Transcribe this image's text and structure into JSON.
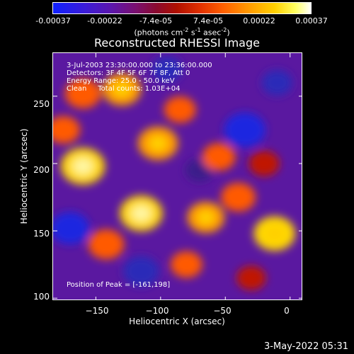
{
  "colorbar": {
    "tick_labels": [
      "-0.00037",
      "-0.00022",
      "-7.4e-05",
      "7.4e-05",
      "0.00022",
      "0.00037"
    ],
    "units_prefix": "(photons cm",
    "units_exp1": "-2",
    "units_mid1": " s",
    "units_exp2": "-1",
    "units_mid2": " asec",
    "units_exp3": "-2",
    "units_suffix": ")"
  },
  "chart_data": {
    "type": "heatmap",
    "title": "Reconstructed RHESSI Image",
    "xlabel": "Heliocentric X (arcsec)",
    "ylabel": "Heliocentric Y (arcsec)",
    "xlim": [
      -183,
      10
    ],
    "ylim": [
      98,
      282
    ],
    "x_ticks": [
      "−150",
      "−100",
      "−50",
      "0"
    ],
    "x_tick_values": [
      -150,
      -100,
      -50,
      0
    ],
    "y_ticks": [
      "100",
      "150",
      "200",
      "250"
    ],
    "y_tick_values": [
      100,
      150,
      200,
      250
    ],
    "colorbar_range": [
      -0.00037,
      0.00037
    ],
    "colormap": [
      "#1020ff",
      "#5a16b0",
      "#7a1070",
      "#b01000",
      "#ff6000",
      "#ffd000",
      "#ffffff"
    ],
    "peak": [
      -161,
      198
    ],
    "hotspots": [
      {
        "x": -160,
        "y": 198,
        "level": 1.0
      },
      {
        "x": -102,
        "y": 215,
        "level": 0.85
      },
      {
        "x": -115,
        "y": 163,
        "level": 0.95
      },
      {
        "x": -65,
        "y": 160,
        "level": 0.75
      },
      {
        "x": -12,
        "y": 148,
        "level": 0.9
      },
      {
        "x": -160,
        "y": 252,
        "level": 0.7
      },
      {
        "x": -130,
        "y": 255,
        "level": 0.8
      },
      {
        "x": -55,
        "y": 205,
        "level": 0.6
      },
      {
        "x": -142,
        "y": 140,
        "level": 0.7
      },
      {
        "x": -40,
        "y": 175,
        "level": 0.65
      },
      {
        "x": -85,
        "y": 240,
        "level": 0.55
      },
      {
        "x": -175,
        "y": 225,
        "level": 0.6
      },
      {
        "x": -20,
        "y": 200,
        "level": 0.5
      },
      {
        "x": -80,
        "y": 125,
        "level": 0.55
      },
      {
        "x": -30,
        "y": 115,
        "level": 0.45
      }
    ],
    "coldspots": [
      {
        "x": -170,
        "y": 152,
        "level": -0.8
      },
      {
        "x": -115,
        "y": 120,
        "level": -0.7
      },
      {
        "x": -35,
        "y": 225,
        "level": -0.9
      },
      {
        "x": -95,
        "y": 270,
        "level": -0.5
      },
      {
        "x": -10,
        "y": 260,
        "level": -0.5
      },
      {
        "x": -70,
        "y": 195,
        "level": -0.4
      }
    ]
  },
  "annotations": {
    "line1": "3-Jul-2003 23:30:00.000 to 23:36:00.000",
    "line2": "Detectors: 3F 4F 5F 6F 7F 8F, Att 0",
    "line3": "Energy Range: 25.0 - 50.0 keV",
    "line4": "Clean     Total counts: 1.03E+04",
    "peak_note": "Position of Peak = [-161,198]"
  },
  "timestamp": "3-May-2022 05:31"
}
